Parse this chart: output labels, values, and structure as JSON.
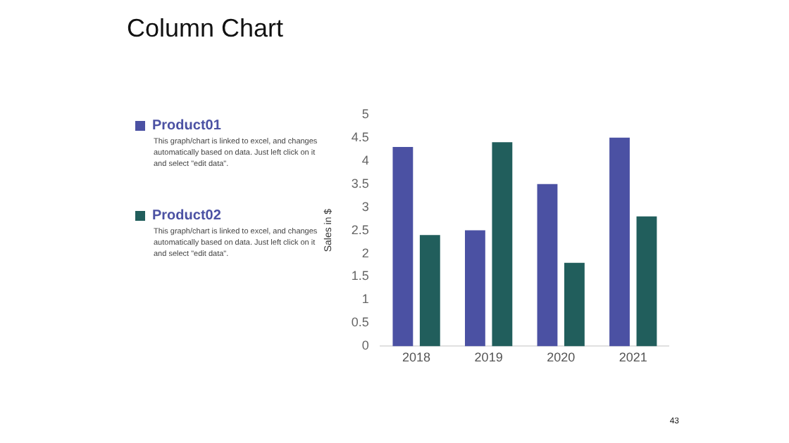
{
  "chart_data": {
    "type": "bar",
    "title": "Column Chart",
    "ylabel": "Sales in $",
    "categories": [
      "2018",
      "2019",
      "2020",
      "2021"
    ],
    "series": [
      {
        "name": "Product01",
        "color": "#4b51a3",
        "values": [
          4.3,
          2.5,
          3.5,
          4.5
        ]
      },
      {
        "name": "Product02",
        "color": "#215e5c",
        "values": [
          2.4,
          4.4,
          1.8,
          2.8
        ]
      }
    ],
    "ylim": [
      0,
      5
    ],
    "yticks": [
      0,
      0.5,
      1,
      1.5,
      2,
      2.5,
      3,
      3.5,
      4,
      4.5,
      5
    ],
    "grid": false,
    "legend": "left",
    "annotations": [
      "This graph/chart is linked to excel, and changes automatically based on data. Just left click on it and select \"edit data\".",
      "This graph/chart is linked to excel, and changes automatically based on data. Just left click on it and select \"edit data\".",
      "43"
    ]
  }
}
